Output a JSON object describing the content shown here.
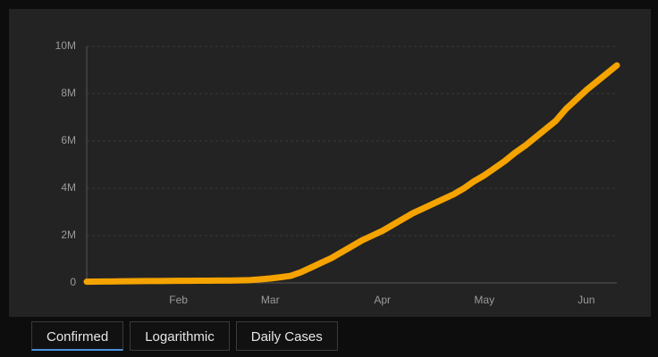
{
  "chart_data": {
    "type": "line",
    "categories": [
      null,
      null,
      null,
      null,
      null,
      null,
      null,
      null,
      null,
      "Feb",
      null,
      null,
      null,
      null,
      null,
      null,
      null,
      null,
      "Mar",
      null,
      null,
      null,
      null,
      null,
      null,
      null,
      null,
      null,
      null,
      "Apr",
      null,
      null,
      null,
      null,
      null,
      null,
      null,
      null,
      null,
      "May",
      null,
      null,
      null,
      null,
      null,
      null,
      null,
      null,
      null,
      "Jun",
      null,
      null,
      null
    ],
    "series": [
      {
        "name": "Confirmed",
        "color": "#f5a300",
        "values": [
          50000,
          55000,
          60000,
          65000,
          70000,
          75000,
          80000,
          82000,
          85000,
          88000,
          90000,
          92000,
          95000,
          98000,
          100000,
          110000,
          120000,
          150000,
          190000,
          240000,
          300000,
          450000,
          650000,
          850000,
          1050000,
          1300000,
          1550000,
          1800000,
          2000000,
          2200000,
          2450000,
          2700000,
          2950000,
          3150000,
          3350000,
          3550000,
          3750000,
          4000000,
          4300000,
          4550000,
          4850000,
          5150000,
          5500000,
          5800000,
          6150000,
          6500000,
          6850000,
          7350000,
          7750000,
          8150000,
          8500000,
          8850000,
          9200000
        ]
      }
    ],
    "ylim": [
      0,
      10000000
    ],
    "yticks": [
      0,
      {
        "value": 2000000,
        "label": "2M"
      },
      {
        "value": 4000000,
        "label": "4M"
      },
      {
        "value": 6000000,
        "label": "6M"
      },
      {
        "value": 8000000,
        "label": "8M"
      },
      {
        "value": 10000000,
        "label": "10M"
      }
    ],
    "grid": true
  },
  "tabs": [
    "Confirmed",
    "Logarithmic",
    "Daily Cases"
  ]
}
